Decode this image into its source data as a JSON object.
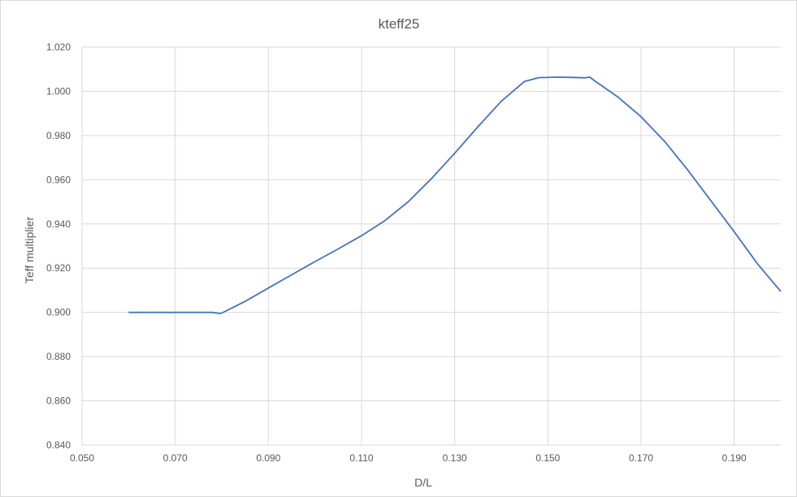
{
  "chart_data": {
    "type": "line",
    "title": "kteff25",
    "xlabel": "D/L",
    "ylabel": "Teff multiplier",
    "xlim": [
      0.05,
      0.2
    ],
    "ylim": [
      0.84,
      1.02
    ],
    "grid": true,
    "legend": "none",
    "x_ticks": [
      "0.050",
      "0.070",
      "0.090",
      "0.110",
      "0.130",
      "0.150",
      "0.170",
      "0.190"
    ],
    "y_ticks": [
      "0.840",
      "0.860",
      "0.880",
      "0.900",
      "0.920",
      "0.940",
      "0.960",
      "0.980",
      "1.000",
      "1.020"
    ],
    "series": [
      {
        "color": "#4472c4",
        "points": [
          [
            0.06,
            0.9
          ],
          [
            0.065,
            0.9
          ],
          [
            0.07,
            0.9
          ],
          [
            0.075,
            0.9
          ],
          [
            0.078,
            0.9
          ],
          [
            0.0795,
            0.8995
          ],
          [
            0.08,
            0.8997
          ],
          [
            0.085,
            0.905
          ],
          [
            0.09,
            0.911
          ],
          [
            0.095,
            0.917
          ],
          [
            0.1,
            0.923
          ],
          [
            0.105,
            0.9287
          ],
          [
            0.11,
            0.9347
          ],
          [
            0.115,
            0.9415
          ],
          [
            0.12,
            0.95
          ],
          [
            0.125,
            0.9605
          ],
          [
            0.13,
            0.972
          ],
          [
            0.135,
            0.984
          ],
          [
            0.14,
            0.9955
          ],
          [
            0.145,
            1.0045
          ],
          [
            0.148,
            1.0062
          ],
          [
            0.152,
            1.0064
          ],
          [
            0.155,
            1.0063
          ],
          [
            0.158,
            1.0061
          ],
          [
            0.159,
            1.0064
          ],
          [
            0.16,
            1.0048
          ],
          [
            0.165,
            0.9975
          ],
          [
            0.17,
            0.9885
          ],
          [
            0.175,
            0.9775
          ],
          [
            0.18,
            0.9645
          ],
          [
            0.185,
            0.9505
          ],
          [
            0.19,
            0.9365
          ],
          [
            0.195,
            0.922
          ],
          [
            0.2,
            0.9095
          ]
        ]
      }
    ]
  }
}
